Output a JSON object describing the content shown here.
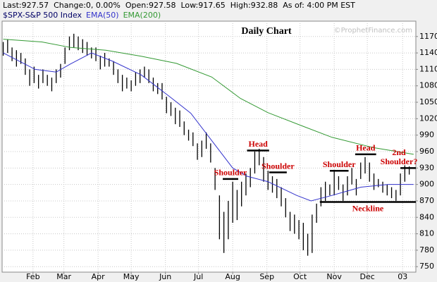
{
  "chart_data": {
    "type": "range-bar",
    "title": "Daily Chart",
    "watermark": "©ProphetFinance.com",
    "quote": [
      "Last:927.57",
      "Change:0, 0.00%",
      "Open:927.58",
      "Low:917.65",
      "High:932.88",
      "As of: 4:00 PM EST"
    ],
    "xlim": [
      3,
      378
    ],
    "ylim": [
      740,
      1198
    ],
    "xticks": [
      {
        "value": 31,
        "label": "Feb"
      },
      {
        "value": 59,
        "label": "Mar"
      },
      {
        "value": 90,
        "label": "Apr"
      },
      {
        "value": 120,
        "label": "May"
      },
      {
        "value": 151,
        "label": "Jun"
      },
      {
        "value": 181,
        "label": "Jul"
      },
      {
        "value": 212,
        "label": "Aug"
      },
      {
        "value": 243,
        "label": "Sep"
      },
      {
        "value": 273,
        "label": "Oct"
      },
      {
        "value": 304,
        "label": "Nov"
      },
      {
        "value": 334,
        "label": "Dec"
      },
      {
        "value": 366,
        "label": "03"
      }
    ],
    "yticks": [
      750,
      780,
      810,
      840,
      870,
      900,
      930,
      960,
      990,
      1020,
      1050,
      1080,
      1110,
      1140,
      1170
    ],
    "grid": true,
    "series": [
      {
        "name": "$SPX-S&P 500 Index",
        "color": "#000000",
        "x": [
          4,
          8,
          12,
          16,
          20,
          24,
          28,
          32,
          36,
          40,
          44,
          48,
          52,
          56,
          60,
          64,
          68,
          72,
          76,
          80,
          84,
          88,
          92,
          96,
          100,
          104,
          108,
          112,
          116,
          120,
          124,
          128,
          132,
          136,
          140,
          144,
          148,
          152,
          156,
          160,
          164,
          168,
          172,
          176,
          180,
          184,
          188,
          192,
          196,
          200,
          204,
          208,
          212,
          216,
          220,
          224,
          228,
          232,
          236,
          240,
          244,
          248,
          252,
          256,
          260,
          264,
          268,
          272,
          276,
          280,
          284,
          288,
          292,
          296,
          300,
          304,
          308,
          312,
          316,
          320,
          324,
          328,
          332,
          336,
          340,
          344,
          348,
          352,
          356,
          360,
          364,
          368,
          372
        ],
        "low": [
          1135,
          1140,
          1125,
          1115,
          1120,
          1100,
          1080,
          1085,
          1075,
          1085,
          1080,
          1070,
          1085,
          1095,
          1120,
          1145,
          1150,
          1145,
          1140,
          1135,
          1130,
          1125,
          1110,
          1115,
          1115,
          1100,
          1085,
          1070,
          1075,
          1070,
          1080,
          1085,
          1095,
          1085,
          1070,
          1065,
          1055,
          1030,
          1025,
          1010,
          1005,
          990,
          980,
          970,
          945,
          950,
          965,
          940,
          890,
          800,
          775,
          800,
          830,
          835,
          860,
          880,
          895,
          920,
          935,
          905,
          890,
          885,
          875,
          860,
          840,
          815,
          810,
          800,
          780,
          770,
          775,
          830,
          860,
          870,
          880,
          880,
          890,
          870,
          880,
          900,
          880,
          910,
          920,
          905,
          890,
          895,
          885,
          880,
          875,
          870,
          880,
          905,
          918
        ],
        "high": [
          1160,
          1165,
          1150,
          1145,
          1140,
          1130,
          1110,
          1115,
          1100,
          1110,
          1100,
          1095,
          1110,
          1120,
          1150,
          1170,
          1175,
          1170,
          1165,
          1160,
          1150,
          1150,
          1135,
          1140,
          1130,
          1125,
          1110,
          1100,
          1095,
          1090,
          1105,
          1110,
          1115,
          1110,
          1095,
          1085,
          1085,
          1060,
          1050,
          1040,
          1035,
          1015,
          1000,
          995,
          975,
          980,
          995,
          975,
          930,
          880,
          850,
          870,
          905,
          890,
          905,
          920,
          930,
          960,
          965,
          950,
          925,
          915,
          910,
          895,
          875,
          850,
          845,
          835,
          830,
          810,
          845,
          865,
          895,
          905,
          900,
          925,
          915,
          900,
          915,
          930,
          910,
          940,
          950,
          940,
          920,
          910,
          905,
          900,
          895,
          890,
          920,
          935,
          933
        ]
      },
      {
        "name": "EMA(50)",
        "color": "#3333cc",
        "x": [
          4,
          33,
          52,
          65,
          84,
          103,
          129,
          155,
          174,
          193,
          212,
          225,
          244,
          270,
          283,
          302,
          328,
          353,
          376
        ],
        "values": [
          1140,
          1110,
          1105,
          1120,
          1140,
          1125,
          1100,
          1060,
          1030,
          980,
          930,
          915,
          905,
          880,
          870,
          880,
          895,
          900,
          900
        ]
      },
      {
        "name": "EMA(200)",
        "color": "#339933",
        "x": [
          4,
          39,
          65,
          97,
          129,
          161,
          193,
          219,
          244,
          276,
          302,
          340,
          376
        ],
        "values": [
          1165,
          1160,
          1150,
          1145,
          1134,
          1121,
          1096,
          1057,
          1031,
          1006,
          986,
          967,
          955
        ]
      }
    ],
    "annotations": [
      {
        "text": "Shoulder",
        "level": 910,
        "x": [
          203,
          217
        ]
      },
      {
        "text": "Head",
        "level": 962,
        "x": [
          225,
          245
        ]
      },
      {
        "text": "Shoulder",
        "level": 922,
        "x": [
          245,
          261
        ]
      },
      {
        "text": "Shoulder",
        "level": 925,
        "x": [
          300,
          317
        ]
      },
      {
        "text": "Head",
        "level": 955,
        "x": [
          323,
          342
        ]
      },
      {
        "text": [
          "2nd",
          "Shoulder?"
        ],
        "level": 930,
        "x": [
          364,
          378
        ]
      },
      {
        "text": "Neckline",
        "level": 868,
        "x": [
          291,
          378
        ],
        "below": true
      }
    ]
  }
}
